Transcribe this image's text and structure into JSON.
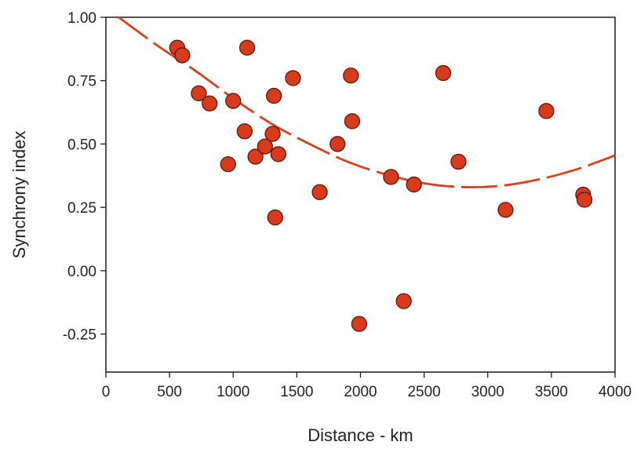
{
  "chart_data": {
    "type": "scatter",
    "title": "",
    "xlabel": "Distance - km",
    "ylabel": "Synchrony index",
    "xlim": [
      0,
      4000
    ],
    "ylim": [
      -0.4,
      1.0
    ],
    "xticks": [
      0,
      500,
      1000,
      1500,
      2000,
      2500,
      3000,
      3500,
      4000
    ],
    "yticks": [
      1.0,
      0.75,
      0.5,
      0.25,
      0.0,
      -0.25
    ],
    "xtick_labels": [
      "0",
      "500",
      "1000",
      "1500",
      "2000",
      "2500",
      "3000",
      "3500",
      "4000"
    ],
    "ytick_labels": [
      "1.00",
      "0.75",
      "0.50",
      "0.25",
      "0.00",
      "-0.25"
    ],
    "grid": false,
    "legend": "none",
    "colors": {
      "points": "#d93a1c",
      "fit_line": "#d9401a",
      "frame": "#1a1a1a"
    },
    "series": [
      {
        "kind": "points",
        "x": [
          560,
          600,
          730,
          815,
          1000,
          1110,
          1090,
          1320,
          1470,
          960,
          1175,
          1250,
          1310,
          1355,
          1330,
          1680,
          1820,
          1925,
          1935,
          1990,
          2240,
          2340,
          2420,
          2650,
          2770,
          3140,
          3460,
          3750,
          3760
        ],
        "y": [
          0.88,
          0.85,
          0.7,
          0.66,
          0.67,
          0.88,
          0.55,
          0.69,
          0.76,
          0.42,
          0.45,
          0.49,
          0.54,
          0.46,
          0.21,
          0.31,
          0.5,
          0.77,
          0.59,
          -0.21,
          0.37,
          -0.12,
          0.34,
          0.78,
          0.43,
          0.24,
          0.63,
          0.3,
          0.28
        ]
      },
      {
        "kind": "fit-line",
        "x": [
          100,
          400,
          700,
          1000,
          1300,
          1600,
          1900,
          2200,
          2500,
          2800,
          3100,
          3400,
          3700,
          4000
        ],
        "y": [
          1.0,
          0.89,
          0.79,
          0.68,
          0.58,
          0.5,
          0.43,
          0.38,
          0.345,
          0.33,
          0.335,
          0.36,
          0.4,
          0.455
        ]
      }
    ]
  }
}
